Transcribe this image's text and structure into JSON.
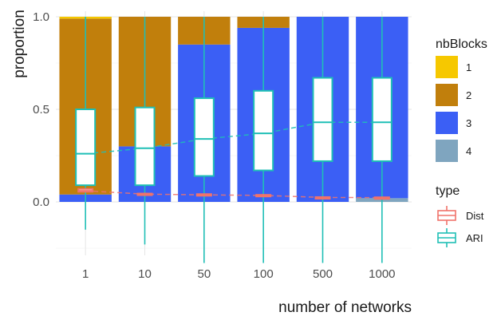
{
  "chart_data": {
    "type": "bar",
    "subtype": "stacked proportion bars with overlaid boxplots",
    "xlabel": "number of networks",
    "ylabel": "proportion",
    "categories": [
      "1",
      "10",
      "50",
      "100",
      "500",
      "1000"
    ],
    "y_ticks": [
      "0.0",
      "0.5",
      "1.0"
    ],
    "ylim": [
      -0.3,
      1.0
    ],
    "grid": true,
    "background": "minimal",
    "bars": {
      "legend_title": "nbBlocks",
      "series": [
        {
          "name": "1",
          "color": "#f6c800",
          "values": [
            0.01,
            0.0,
            0.0,
            0.0,
            0.0,
            0.0
          ]
        },
        {
          "name": "2",
          "color": "#c17f0c",
          "values": [
            0.95,
            0.7,
            0.15,
            0.06,
            0.0,
            0.0
          ]
        },
        {
          "name": "3",
          "color": "#3b5ff5",
          "values": [
            0.04,
            0.3,
            0.85,
            0.94,
            1.0,
            0.98
          ]
        },
        {
          "name": "4",
          "color": "#7fa5bf",
          "values": [
            0.0,
            0.0,
            0.0,
            0.0,
            0.0,
            0.02
          ]
        }
      ]
    },
    "boxes": {
      "legend_title": "type",
      "series": [
        {
          "name": "ARI",
          "color": "#1fbfb6",
          "stats": [
            {
              "min": -0.15,
              "q1": 0.09,
              "median": 0.26,
              "q3": 0.5,
              "max": 1.0
            },
            {
              "min": -0.23,
              "q1": 0.09,
              "median": 0.29,
              "q3": 0.51,
              "max": 1.0
            },
            {
              "min": -0.33,
              "q1": 0.14,
              "median": 0.34,
              "q3": 0.56,
              "max": 1.0
            },
            {
              "min": -0.33,
              "q1": 0.17,
              "median": 0.37,
              "q3": 0.6,
              "max": 1.0
            },
            {
              "min": -0.33,
              "q1": 0.22,
              "median": 0.43,
              "q3": 0.67,
              "max": 1.0
            },
            {
              "min": -0.33,
              "q1": 0.22,
              "median": 0.43,
              "q3": 0.67,
              "max": 1.0
            }
          ],
          "median_trend": "dashed"
        },
        {
          "name": "Dist",
          "color": "#f0736b",
          "stats": [
            {
              "min": 0.05,
              "q1": 0.055,
              "median": 0.06,
              "q3": 0.07,
              "max": 0.075
            },
            {
              "min": 0.035,
              "q1": 0.04,
              "median": 0.042,
              "q3": 0.045,
              "max": 0.05
            },
            {
              "min": 0.03,
              "q1": 0.035,
              "median": 0.038,
              "q3": 0.042,
              "max": 0.045
            },
            {
              "min": 0.03,
              "q1": 0.033,
              "median": 0.035,
              "q3": 0.038,
              "max": 0.042
            },
            {
              "min": 0.02,
              "q1": 0.022,
              "median": 0.024,
              "q3": 0.026,
              "max": 0.028
            },
            {
              "min": 0.02,
              "q1": 0.021,
              "median": 0.023,
              "q3": 0.025,
              "max": 0.026
            }
          ],
          "median_trend": "dashed"
        }
      ]
    },
    "legend_placement": "right"
  }
}
